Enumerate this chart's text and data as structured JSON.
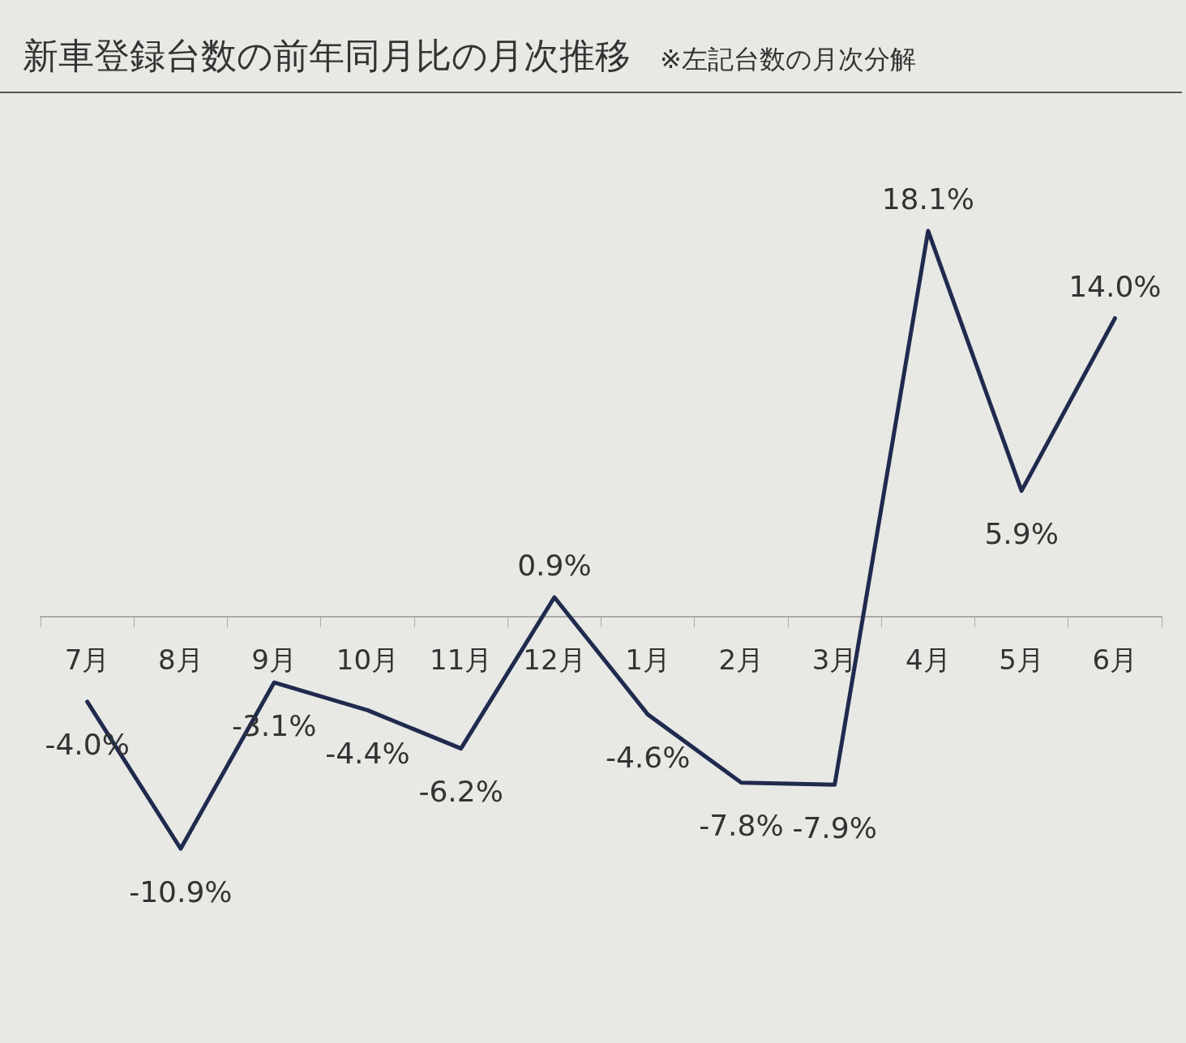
{
  "chart_data": {
    "type": "line",
    "title": "新車登録台数の前年同月比の月次推移",
    "subtitle": "※左記台数の月次分解",
    "categories": [
      "7月",
      "8月",
      "9月",
      "10月",
      "11月",
      "12月",
      "1月",
      "2月",
      "3月",
      "4月",
      "5月",
      "6月"
    ],
    "series": [
      {
        "color": "#1f2a4e",
        "values": [
          -4.0,
          -10.9,
          -3.1,
          -4.4,
          -6.2,
          0.9,
          -4.6,
          -7.8,
          -7.9,
          18.1,
          5.9,
          14.0
        ],
        "value_labels": [
          "-4.0%",
          "-10.9%",
          "-3.1%",
          "-4.4%",
          "-6.2%",
          "0.9%",
          "-4.6%",
          "-7.8%",
          "-7.9%",
          "18.1%",
          "5.9%",
          "14.0%"
        ]
      }
    ],
    "tick_labels": "x",
    "grid": false,
    "legend": false,
    "marker": "none",
    "line_style": "solid"
  }
}
